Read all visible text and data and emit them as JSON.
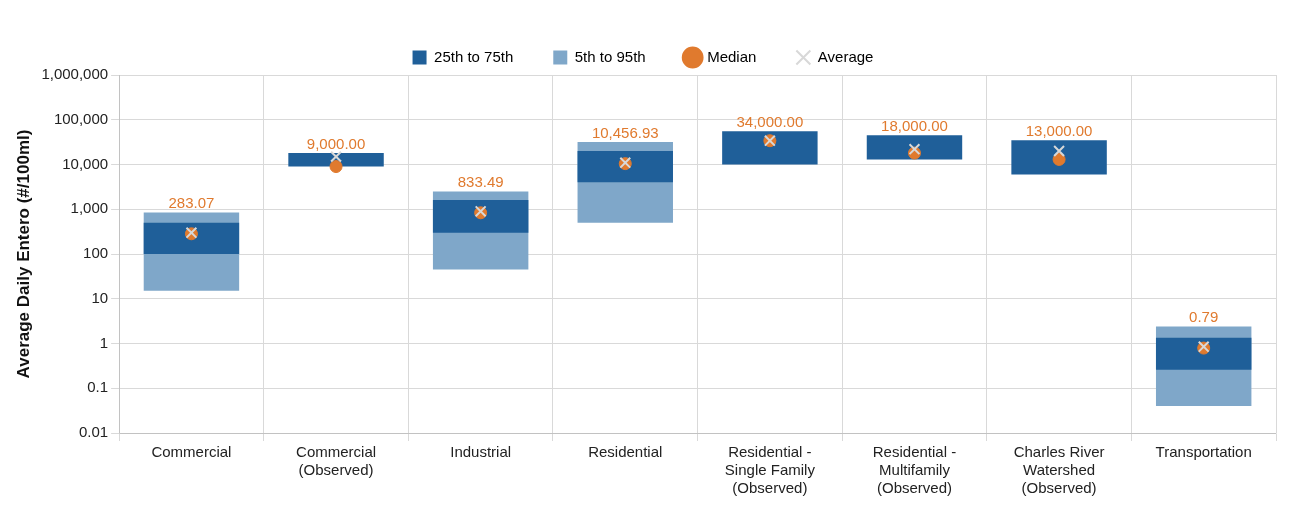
{
  "chart_data": {
    "type": "bar",
    "ylabel": "Average Daily Entero (#/100ml)",
    "log": true,
    "grid": true,
    "legend": "top",
    "categories": [
      "Commercial",
      "Commercial (Observed)",
      "Industrial",
      "Residential",
      "Residential - Single Family (Observed)",
      "Residential - Multifamily (Observed)",
      "Charles River Watershed (Observed)",
      "Transportation"
    ],
    "ylim": [
      0.01,
      1000000
    ],
    "yticks": [
      0.01,
      0.1,
      1,
      10,
      100,
      {
        "value": 1000,
        "label": "1,000"
      },
      {
        "value": 10000,
        "label": "10,000"
      },
      {
        "value": 100000,
        "label": "100,000"
      },
      {
        "value": 1000000,
        "label": "1,000,000"
      }
    ],
    "series": [
      {
        "name": "25th to 75th",
        "color": "#1f5f99",
        "base": [
          100,
          9000,
          300,
          4000,
          10000,
          13000,
          6000,
          0.26
        ],
        "values": [
          400,
          9000,
          1300,
          16000,
          45000,
          32000,
          29000,
          1.09
        ]
      },
      {
        "name": "5th to 95th",
        "color": "#7fa7c9",
        "base": [
          15,
          null,
          45,
          500,
          null,
          null,
          null,
          0.04
        ],
        "values": [
          835,
          null,
          2455,
          31500,
          null,
          null,
          null,
          2.36
        ]
      },
      {
        "name": "Median",
        "type": "scatter",
        "marker": "circle",
        "color": "#e07a2e",
        "x": [
          "Commercial",
          "Commercial (Observed)",
          "Industrial",
          "Residential",
          "Residential - Single Family (Observed)",
          "Residential - Multifamily (Observed)",
          "Charles River Watershed (Observed)",
          "Transportation"
        ],
        "values": [
          283.07,
          9000,
          833.49,
          10456.93,
          34000,
          18000,
          13000,
          0.79
        ],
        "value_labels": [
          "283.07",
          "9,000.00",
          "833.49",
          "10,456.93",
          "34,000.00",
          "18,000.00",
          "13,000.00",
          "0.79"
        ]
      },
      {
        "name": "Average",
        "type": "scatter",
        "marker": "cross",
        "color": "#d8d8d8",
        "x": [
          "Commercial",
          "Commercial (Observed)",
          "Industrial",
          "Residential",
          "Residential - Single Family (Observed)",
          "Residential - Multifamily (Observed)",
          "Charles River Watershed (Observed)",
          "Transportation"
        ],
        "values": [
          300,
          15000,
          900,
          11000,
          34000,
          22000,
          20000,
          0.85
        ]
      }
    ]
  }
}
